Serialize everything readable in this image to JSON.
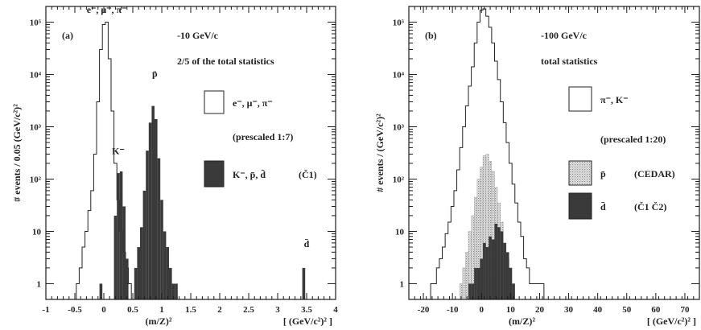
{
  "chart_data": [
    {
      "type": "histogram",
      "panel_label": "(a)",
      "momentum": "-10 GeV/c",
      "statistics_note": "2/5 of the total statistics",
      "ylabel": "# events / 0.05 (GeV/c²)²",
      "xlabel": "(m/Z)²",
      "xunit": "[ (GeV/c²)² ]",
      "xlim": [
        -1,
        4
      ],
      "ylim": [
        0.5,
        200000
      ],
      "yscale": "log",
      "x_ticks": [
        -1,
        -0.5,
        0,
        0.5,
        1,
        1.5,
        2,
        2.5,
        3,
        3.5,
        4
      ],
      "x_tick_labels": [
        "-1",
        "-0.5",
        "0",
        "0.5",
        "1",
        "1.5",
        "2",
        "2.5",
        "3",
        "3.5",
        "4"
      ],
      "y_ticks": [
        1,
        10,
        100,
        1000,
        10000,
        100000
      ],
      "y_tick_labels": [
        "1",
        "10",
        "10²",
        "10³",
        "10⁴",
        "10⁵"
      ],
      "bin_width": 0.05,
      "peak_labels": [
        {
          "text": "e⁻, μ⁻, π⁻",
          "x": 0.05,
          "y": 150000
        },
        {
          "text": "K⁻",
          "x": 0.25,
          "y": 300
        },
        {
          "text": "p̄",
          "x": 0.88,
          "y": 9000
        },
        {
          "text": "d̄",
          "x": 3.5,
          "y": 5
        }
      ],
      "legend": [
        {
          "label": "e⁻, μ⁻, π⁻",
          "style": "open"
        },
        {
          "label": "(prescaled 1:7)",
          "style": "note"
        },
        {
          "label": "K⁻, p̄, d̄",
          "suffix": "(Č1)",
          "style": "filled"
        }
      ],
      "series": [
        {
          "name": "e⁻, μ⁻, π⁻",
          "style": "open",
          "x": [
            -0.45,
            -0.4,
            -0.35,
            -0.3,
            -0.25,
            -0.2,
            -0.15,
            -0.1,
            -0.05,
            0.0,
            0.05,
            0.1,
            0.15,
            0.2,
            0.25,
            0.3,
            0.35,
            0.4,
            0.45
          ],
          "y": [
            1,
            2,
            5,
            10,
            25,
            60,
            300,
            3000,
            30000,
            90000,
            100000,
            20000,
            2000,
            200,
            40,
            10,
            4,
            2,
            1
          ]
        },
        {
          "name": "K⁻, p̄, d̄",
          "style": "filled",
          "x": [
            -0.05,
            0.2,
            0.25,
            0.3,
            0.35,
            0.4,
            0.55,
            0.6,
            0.65,
            0.7,
            0.75,
            0.8,
            0.85,
            0.9,
            0.95,
            1.0,
            1.05,
            1.1,
            1.15,
            1.2,
            1.25,
            3.45
          ],
          "y": [
            1,
            20,
            130,
            140,
            30,
            3,
            2,
            5,
            12,
            60,
            350,
            1200,
            2500,
            1400,
            250,
            40,
            10,
            5,
            2,
            1,
            1,
            2
          ]
        }
      ]
    },
    {
      "type": "histogram",
      "panel_label": "(b)",
      "momentum": "-100 GeV/c",
      "statistics_note": "total statistics",
      "ylabel": "# events / (GeV/c²)²",
      "xlabel": "(m/Z)²",
      "xunit": "[ (GeV/c²)² ]",
      "xlim": [
        -25,
        75
      ],
      "ylim": [
        0.5,
        200000
      ],
      "yscale": "log",
      "x_ticks": [
        -20,
        -10,
        0,
        10,
        20,
        30,
        40,
        50,
        60,
        70
      ],
      "x_tick_labels": [
        "-20",
        "-10",
        "0",
        "10",
        "20",
        "30",
        "40",
        "50",
        "60",
        "70"
      ],
      "y_ticks": [
        1,
        10,
        100,
        1000,
        10000,
        100000
      ],
      "y_tick_labels": [
        "1",
        "10",
        "10²",
        "10³",
        "10⁴",
        "10⁵"
      ],
      "bin_width": 1,
      "legend": [
        {
          "label": "π⁻, K⁻",
          "style": "open"
        },
        {
          "label": "(prescaled 1:20)",
          "style": "note"
        },
        {
          "label": "p̄",
          "suffix": "(CEDAR)",
          "style": "hatched"
        },
        {
          "label": "d̄",
          "suffix": "(Č1 Č2)",
          "style": "filled"
        }
      ],
      "series": [
        {
          "name": "π⁻, K⁻",
          "style": "open",
          "x": [
            -17,
            -16,
            -15,
            -14,
            -13,
            -12,
            -11,
            -10,
            -9,
            -8,
            -7,
            -6,
            -5,
            -4,
            -3,
            -2,
            -1,
            0,
            1,
            2,
            3,
            4,
            5,
            6,
            7,
            8,
            9,
            10,
            11,
            12,
            13,
            14,
            15,
            16,
            17,
            18,
            19,
            20,
            21
          ],
          "y": [
            1,
            1,
            2,
            3,
            5,
            9,
            15,
            30,
            60,
            150,
            400,
            1000,
            2500,
            6000,
            14000,
            40000,
            100000,
            170000,
            180000,
            130000,
            80000,
            40000,
            18000,
            8000,
            3000,
            1200,
            500,
            200,
            80,
            35,
            15,
            8,
            3,
            2,
            1,
            1,
            1,
            1,
            1
          ]
        },
        {
          "name": "p̄",
          "style": "hatched",
          "x": [
            -7,
            -6,
            -5,
            -4,
            -3,
            -2,
            -1,
            0,
            1,
            2,
            3,
            4,
            5,
            6,
            7,
            8,
            9,
            10,
            11
          ],
          "y": [
            1,
            2,
            4,
            10,
            20,
            45,
            100,
            170,
            280,
            300,
            220,
            140,
            70,
            35,
            15,
            6,
            3,
            2,
            1
          ]
        },
        {
          "name": "d̄",
          "style": "filled",
          "x": [
            -4,
            -3,
            -2,
            -1,
            0,
            1,
            2,
            3,
            4,
            5,
            6,
            7,
            8,
            9,
            10,
            11
          ],
          "y": [
            1,
            1,
            2,
            2,
            3,
            6,
            5,
            8,
            7,
            14,
            12,
            10,
            6,
            4,
            2,
            1
          ]
        }
      ]
    }
  ]
}
